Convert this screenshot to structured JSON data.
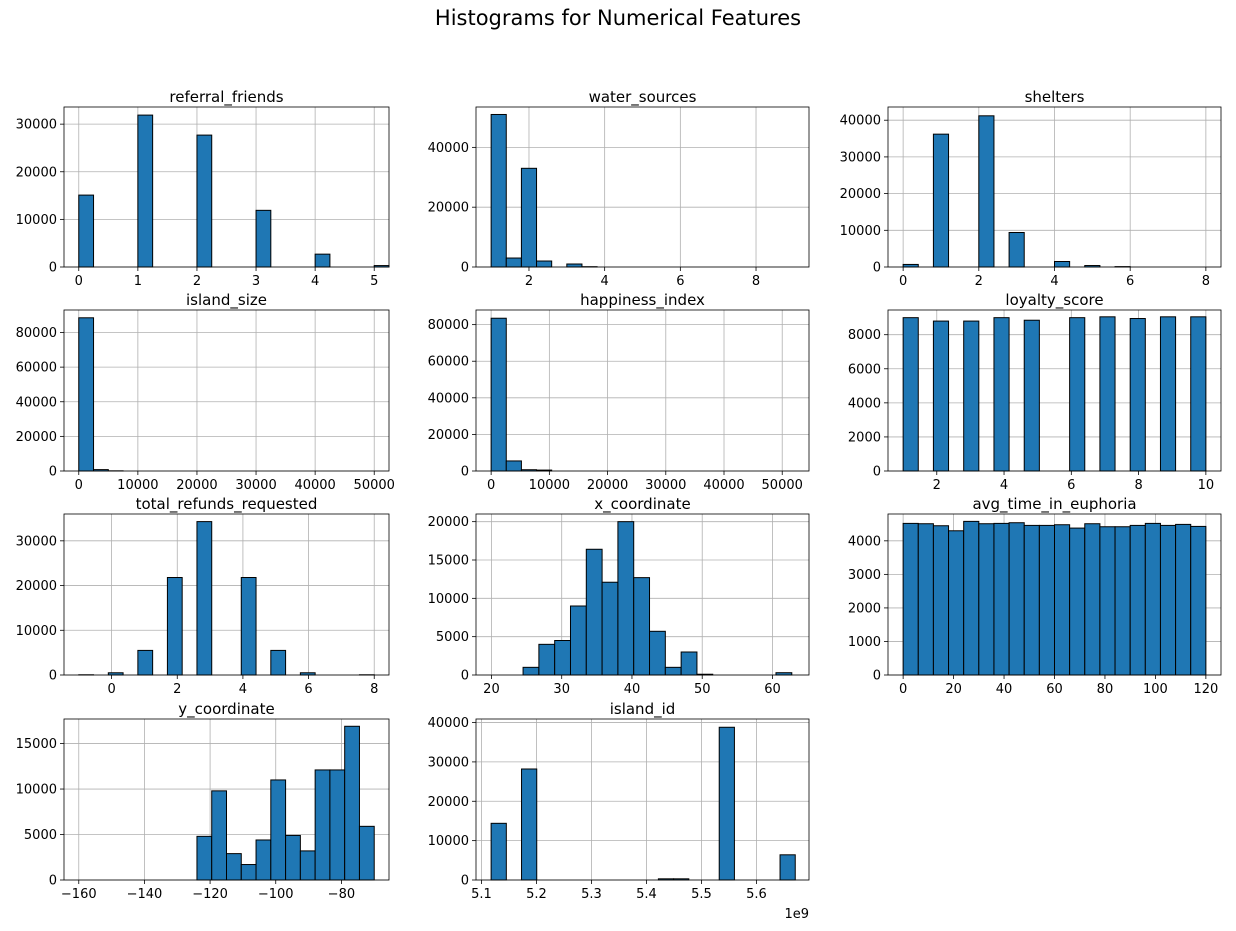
{
  "figure": {
    "title": "Histograms for Numerical Features",
    "bar_color": "#1f77b4",
    "edge_color": "#000000",
    "grid_color": "#b0b0b0"
  },
  "chart_data": [
    {
      "type": "bar",
      "title": "referral_friends",
      "grid": true,
      "xlim": [
        -0.25,
        5.25
      ],
      "ylim": [
        0,
        33600
      ],
      "xticks": [
        0,
        1,
        2,
        3,
        4,
        5
      ],
      "xtick_labels": [
        "0",
        "1",
        "2",
        "3",
        "4",
        "5"
      ],
      "yticks": [
        0,
        10000,
        20000,
        30000
      ],
      "ytick_labels": [
        "0",
        "10000",
        "20000",
        "30000"
      ],
      "bin_start": 0,
      "bin_width": 0.25,
      "values": [
        15100,
        0,
        0,
        0,
        31900,
        0,
        0,
        0,
        27700,
        0,
        0,
        0,
        11900,
        0,
        0,
        0,
        2700,
        0,
        0,
        0,
        300
      ]
    },
    {
      "type": "bar",
      "title": "water_sources",
      "grid": true,
      "xlim": [
        0.6,
        9.4
      ],
      "ylim": [
        0,
        53500
      ],
      "xticks": [
        2,
        4,
        6,
        8
      ],
      "xtick_labels": [
        "2",
        "4",
        "6",
        "8"
      ],
      "yticks": [
        0,
        20000,
        40000
      ],
      "ytick_labels": [
        "0",
        "20000",
        "40000"
      ],
      "bin_start": 1,
      "bin_width": 0.4,
      "values": [
        51000,
        3000,
        33000,
        2000,
        0,
        1000,
        100,
        0,
        0,
        0,
        0,
        0,
        0,
        0,
        0,
        0,
        0,
        0,
        0,
        0
      ]
    },
    {
      "type": "bar",
      "title": "shelters",
      "grid": true,
      "xlim": [
        -0.4,
        8.4
      ],
      "ylim": [
        0,
        43600
      ],
      "xticks": [
        0,
        2,
        4,
        6,
        8
      ],
      "xtick_labels": [
        "0",
        "2",
        "4",
        "6",
        "8"
      ],
      "yticks": [
        0,
        10000,
        20000,
        30000,
        40000
      ],
      "ytick_labels": [
        "0",
        "10000",
        "20000",
        "30000",
        "40000"
      ],
      "bin_start": 0,
      "bin_width": 0.4,
      "values": [
        700,
        0,
        36200,
        0,
        0,
        41200,
        0,
        9400,
        0,
        0,
        1500,
        0,
        400,
        0,
        100,
        0,
        0,
        0,
        0,
        0
      ]
    },
    {
      "type": "bar",
      "title": "island_size",
      "grid": true,
      "xlim": [
        -2500,
        52500
      ],
      "ylim": [
        0,
        93000
      ],
      "xticks": [
        0,
        10000,
        20000,
        30000,
        40000,
        50000
      ],
      "xtick_labels": [
        "0",
        "10000",
        "20000",
        "30000",
        "40000",
        "50000"
      ],
      "yticks": [
        0,
        20000,
        40000,
        60000,
        80000
      ],
      "ytick_labels": [
        "0",
        "20000",
        "40000",
        "60000",
        "80000"
      ],
      "bin_start": 0,
      "bin_width": 2500,
      "values": [
        88500,
        800,
        100,
        0,
        0,
        0,
        0,
        0,
        0,
        0,
        0,
        0,
        0,
        0,
        0,
        0,
        0,
        0,
        0,
        0
      ]
    },
    {
      "type": "bar",
      "title": "happiness_index",
      "grid": true,
      "xlim": [
        -2600,
        54600
      ],
      "ylim": [
        0,
        88000
      ],
      "xticks": [
        0,
        10000,
        20000,
        30000,
        40000,
        50000
      ],
      "xtick_labels": [
        "0",
        "10000",
        "20000",
        "30000",
        "40000",
        "50000"
      ],
      "yticks": [
        0,
        20000,
        40000,
        60000,
        80000
      ],
      "ytick_labels": [
        "0",
        "20000",
        "40000",
        "60000",
        "80000"
      ],
      "bin_start": 0,
      "bin_width": 2600,
      "values": [
        83500,
        5500,
        700,
        500,
        0,
        0,
        0,
        0,
        0,
        0,
        0,
        0,
        0,
        0,
        0,
        0,
        0,
        0,
        0,
        0
      ]
    },
    {
      "type": "bar",
      "title": "loyalty_score",
      "grid": true,
      "xlim": [
        0.55,
        10.45
      ],
      "ylim": [
        0,
        9450
      ],
      "xticks": [
        2,
        4,
        6,
        8,
        10
      ],
      "xtick_labels": [
        "2",
        "4",
        "6",
        "8",
        "10"
      ],
      "yticks": [
        0,
        2000,
        4000,
        6000,
        8000
      ],
      "ytick_labels": [
        "0",
        "2000",
        "4000",
        "6000",
        "8000"
      ],
      "bin_start": 1,
      "bin_width": 0.45,
      "values": [
        9000,
        0,
        8800,
        0,
        8800,
        0,
        9000,
        0,
        8850,
        0,
        0,
        9000,
        0,
        9050,
        0,
        8950,
        0,
        9050,
        0,
        9050
      ]
    },
    {
      "type": "bar",
      "title": "total_refunds_requested",
      "grid": true,
      "xlim": [
        -1.45,
        8.45
      ],
      "ylim": [
        0,
        36000
      ],
      "xticks": [
        0,
        2,
        4,
        6,
        8
      ],
      "xtick_labels": [
        "0",
        "2",
        "4",
        "6",
        "8"
      ],
      "yticks": [
        0,
        10000,
        20000,
        30000
      ],
      "ytick_labels": [
        "0",
        "10000",
        "20000",
        "30000"
      ],
      "bin_start": -1,
      "bin_width": 0.45,
      "values": [
        50,
        0,
        500,
        0,
        5500,
        0,
        21800,
        0,
        34300,
        0,
        0,
        21800,
        0,
        5500,
        0,
        500,
        0,
        0,
        0,
        50
      ]
    },
    {
      "type": "bar",
      "title": "x_coordinate",
      "grid": true,
      "xlim": [
        17.8,
        65.2
      ],
      "ylim": [
        0,
        21000
      ],
      "xticks": [
        20,
        30,
        40,
        50,
        60
      ],
      "xtick_labels": [
        "20",
        "30",
        "40",
        "50",
        "60"
      ],
      "yticks": [
        0,
        5000,
        10000,
        15000,
        20000
      ],
      "ytick_labels": [
        "0",
        "5000",
        "10000",
        "15000",
        "20000"
      ],
      "bin_start": 20,
      "bin_width": 2.25,
      "values": [
        0,
        0,
        1000,
        4000,
        4500,
        9000,
        16400,
        12100,
        20000,
        12700,
        5700,
        1000,
        3000,
        100,
        0,
        0,
        0,
        0,
        300,
        0
      ]
    },
    {
      "type": "bar",
      "title": "avg_time_in_euphoria",
      "grid": true,
      "xlim": [
        -6,
        126
      ],
      "ylim": [
        0,
        4800
      ],
      "xticks": [
        0,
        20,
        40,
        60,
        80,
        100,
        120
      ],
      "xtick_labels": [
        "0",
        "20",
        "40",
        "60",
        "80",
        "100",
        "120"
      ],
      "yticks": [
        0,
        1000,
        2000,
        3000,
        4000
      ],
      "ytick_labels": [
        "0",
        "1000",
        "2000",
        "3000",
        "4000"
      ],
      "bin_start": 0,
      "bin_width": 6,
      "values": [
        4520,
        4510,
        4450,
        4300,
        4580,
        4510,
        4520,
        4540,
        4460,
        4460,
        4480,
        4380,
        4510,
        4420,
        4420,
        4460,
        4520,
        4460,
        4490,
        4430
      ]
    },
    {
      "type": "bar",
      "title": "y_coordinate",
      "grid": true,
      "xlim": [
        -164.5,
        -65.5
      ],
      "ylim": [
        0,
        17700
      ],
      "xticks": [
        -160,
        -140,
        -120,
        -100,
        -80
      ],
      "xtick_labels": [
        "−160",
        "−140",
        "−120",
        "−100",
        "−80"
      ],
      "yticks": [
        0,
        5000,
        10000,
        15000
      ],
      "ytick_labels": [
        "0",
        "5000",
        "10000",
        "15000"
      ],
      "bin_start": -160,
      "bin_width": 4.5,
      "values": [
        0,
        0,
        0,
        0,
        0,
        0,
        0,
        0,
        4800,
        9800,
        2900,
        1700,
        4400,
        11000,
        4900,
        3200,
        12100,
        12100,
        16900,
        5900
      ]
    },
    {
      "type": "bar",
      "title": "island_id",
      "grid": true,
      "xlim": [
        5.09,
        5.6955
      ],
      "ylim": [
        0,
        40900
      ],
      "xticks": [
        5.1,
        5.2,
        5.3,
        5.4,
        5.5,
        5.6
      ],
      "xtick_labels": [
        "5.1",
        "5.2",
        "5.3",
        "5.4",
        "5.5",
        "5.6"
      ],
      "xaxis_offset_label": "1e9",
      "yticks": [
        0,
        10000,
        20000,
        30000,
        40000
      ],
      "ytick_labels": [
        "0",
        "10000",
        "20000",
        "30000",
        "40000"
      ],
      "bin_start": 5.1175,
      "bin_width": 0.02765,
      "values": [
        14400,
        0,
        28200,
        0,
        0,
        0,
        0,
        0,
        0,
        0,
        0,
        300,
        300,
        0,
        0,
        38800,
        0,
        0,
        0,
        6400
      ]
    }
  ]
}
